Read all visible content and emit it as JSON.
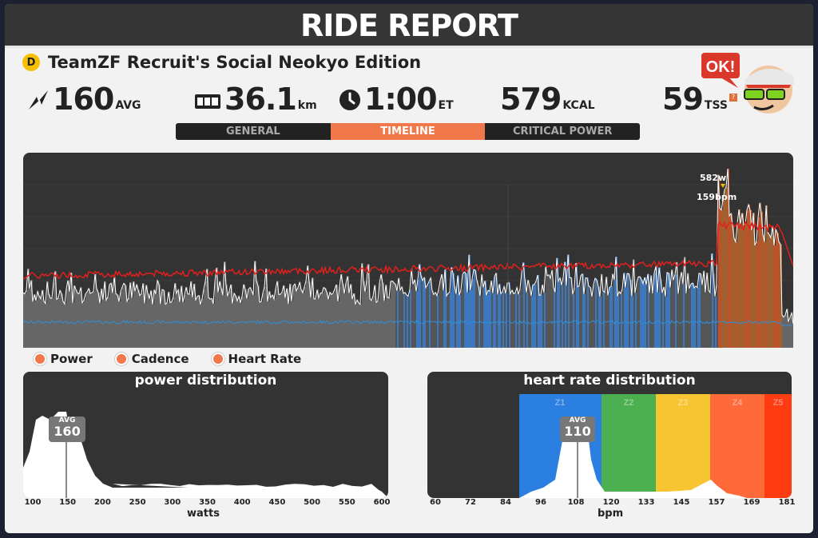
{
  "header": {
    "title": "RIDE REPORT"
  },
  "route": {
    "badge": "D",
    "name": "TeamZF Recruit's Social Neokyo Edition"
  },
  "stats": {
    "power": {
      "value": "160",
      "unit": "AVG",
      "icon": "power-bolt-icon"
    },
    "distance": {
      "value": "36.1",
      "unit": "km",
      "icon": "odometer-icon"
    },
    "time": {
      "value": "1:00",
      "unit": "ET",
      "icon": "clock-icon"
    },
    "calories": {
      "value": "579",
      "unit": "KCAL"
    },
    "tss": {
      "value": "59",
      "unit": "TSS",
      "help": "?"
    }
  },
  "avatar": {
    "speech": "OK!"
  },
  "tabs": [
    {
      "label": "GENERAL",
      "active": false
    },
    {
      "label": "TIMELINE",
      "active": true
    },
    {
      "label": "CRITICAL POWER",
      "active": false
    }
  ],
  "timeline": {
    "peak_power": "582w",
    "peak_hr": "159bpm",
    "colors": {
      "power": "#ffffff",
      "heart_rate": "#e0201c",
      "cadence": "#2f8fd8",
      "bg": "#333333"
    }
  },
  "legend": [
    {
      "label": "Power"
    },
    {
      "label": "Cadence"
    },
    {
      "label": "Heart Rate"
    }
  ],
  "power_distribution": {
    "title": "power distribution",
    "avg_label": "AVG",
    "avg_value": "160",
    "x_label": "watts",
    "ticks": [
      "100",
      "150",
      "200",
      "250",
      "300",
      "350",
      "400",
      "450",
      "500",
      "550",
      "600"
    ]
  },
  "hr_distribution": {
    "title": "heart rate distribution",
    "avg_label": "AVG",
    "avg_value": "110",
    "x_label": "bpm",
    "ticks": [
      "60",
      "72",
      "84",
      "96",
      "108",
      "120",
      "133",
      "145",
      "157",
      "169",
      "181"
    ],
    "zones": [
      {
        "label": "Z1",
        "color": "#2b7fe0"
      },
      {
        "label": "Z2",
        "color": "#4caf50"
      },
      {
        "label": "Z3",
        "color": "#f7c531"
      },
      {
        "label": "Z4",
        "color": "#ff6a3a"
      },
      {
        "label": "Z5",
        "color": "#ff3b12"
      }
    ]
  }
}
